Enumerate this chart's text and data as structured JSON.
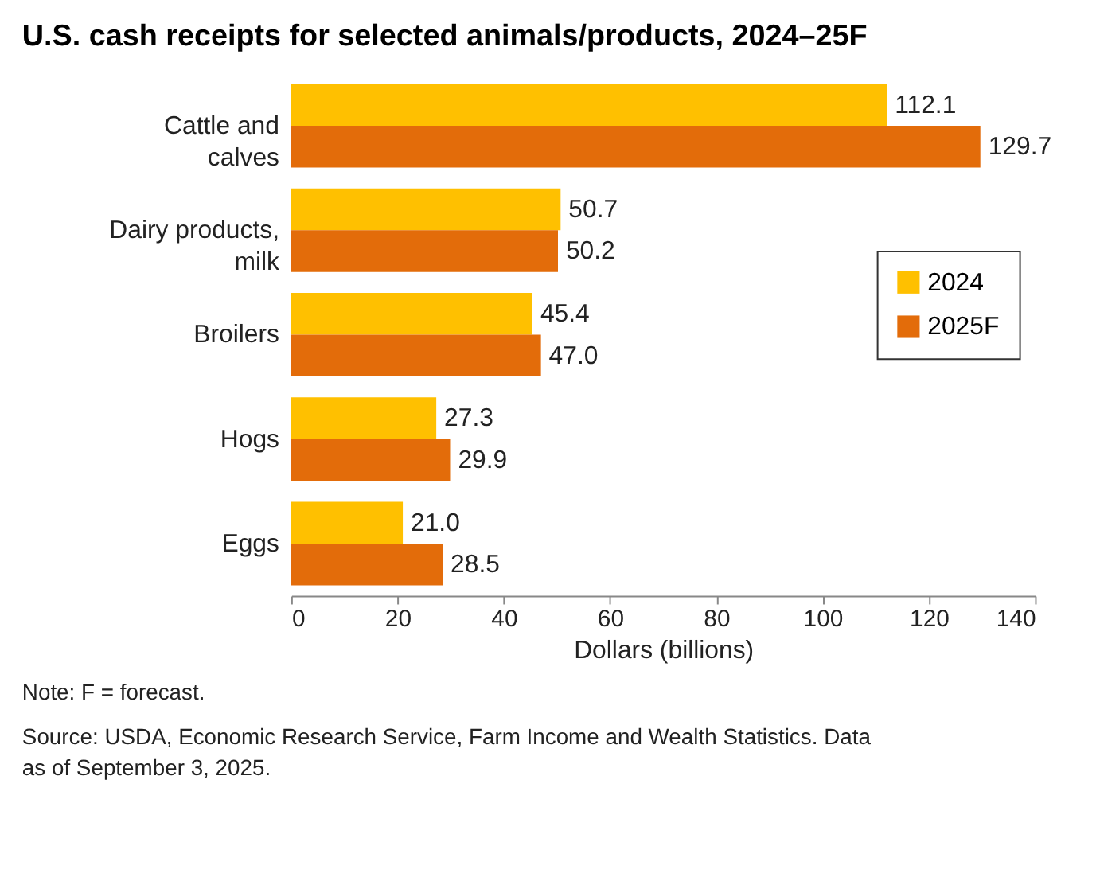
{
  "chart_data": {
    "type": "bar",
    "orientation": "horizontal",
    "title": "U.S. cash receipts for selected animals/products, 2024–25F",
    "categories": [
      "Cattle and calves",
      "Dairy products, milk",
      "Broilers",
      "Hogs",
      "Eggs"
    ],
    "series": [
      {
        "name": "2024",
        "color": "#ffc000",
        "values": [
          112.1,
          50.7,
          45.4,
          27.3,
          21.0
        ],
        "value_labels": [
          "112.1",
          "50.7",
          "45.4",
          "27.3",
          "21.0"
        ]
      },
      {
        "name": "2025F",
        "color": "#e36c0a",
        "values": [
          129.7,
          50.2,
          47.0,
          29.9,
          28.5
        ],
        "value_labels": [
          "129.7",
          "50.2",
          "47.0",
          "29.9",
          "28.5"
        ]
      }
    ],
    "xlabel": "Dollars (billions)",
    "xlim": [
      0,
      140
    ],
    "xticks": [
      0,
      20,
      40,
      60,
      80,
      100,
      120,
      140
    ],
    "grid": false,
    "legend": "right",
    "annotations": [
      "Note: F = forecast.",
      "Source: USDA, Economic Research Service, Farm Income and Wealth Statistics. Data as of September 3, 2025."
    ]
  }
}
